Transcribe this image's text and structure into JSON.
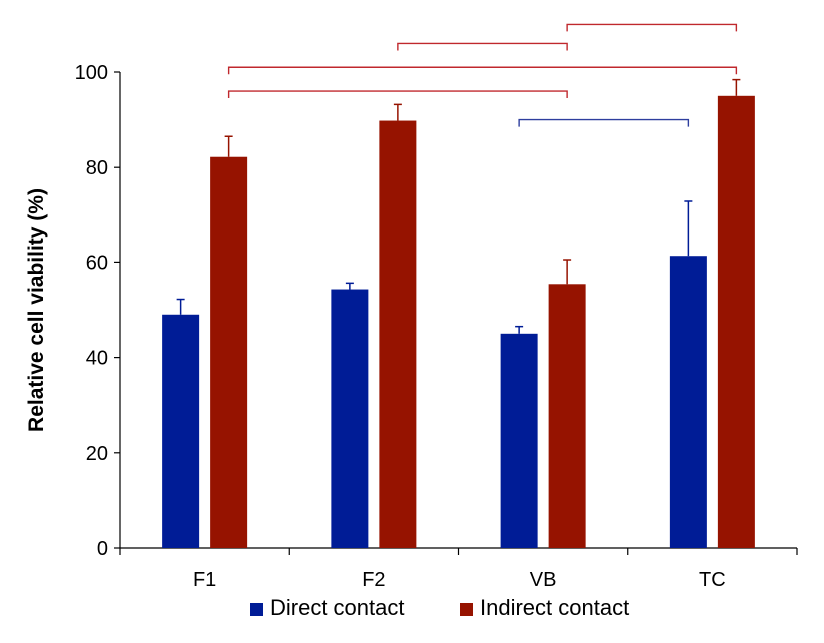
{
  "chart_data": {
    "type": "bar",
    "title": "",
    "xlabel": "",
    "ylabel": "Relative cell viability (%)",
    "ylim": [
      0,
      100
    ],
    "yticks": [
      0,
      20,
      40,
      60,
      80,
      100
    ],
    "categories": [
      "F1",
      "F2",
      "VB",
      "TC"
    ],
    "series": [
      {
        "name": "Direct contact",
        "color": "#001C96",
        "values": [
          49,
          54.3,
          45,
          61.3
        ],
        "errors": [
          3.2,
          1.3,
          1.5,
          11.6
        ]
      },
      {
        "name": "Indirect contact",
        "color": "#961300",
        "values": [
          82.2,
          89.8,
          55.4,
          95
        ],
        "errors": [
          4.3,
          3.4,
          5.1,
          3.4
        ]
      }
    ],
    "significance_brackets": [
      {
        "from_category": "F1",
        "to_category": "VB",
        "series": "Indirect contact",
        "level_y": 96,
        "color": "#C0282D"
      },
      {
        "from_category": "F1",
        "to_category": "TC",
        "series": "Indirect contact",
        "level_y": 101,
        "color": "#C0282D"
      },
      {
        "from_category": "F2",
        "to_category": "VB",
        "series": "Indirect contact",
        "level_y": 106,
        "color": "#C0282D"
      },
      {
        "from_category": "VB",
        "to_category": "TC",
        "series": "Indirect contact",
        "level_y": 110,
        "color": "#C0282D"
      },
      {
        "from_category": "VB",
        "to_category": "TC",
        "series": "Direct contact",
        "level_y": 90,
        "color": "#2E3E9E"
      }
    ],
    "legend": {
      "position": "bottom",
      "entries": [
        "Direct contact",
        "Indirect contact"
      ]
    },
    "grid": false
  }
}
